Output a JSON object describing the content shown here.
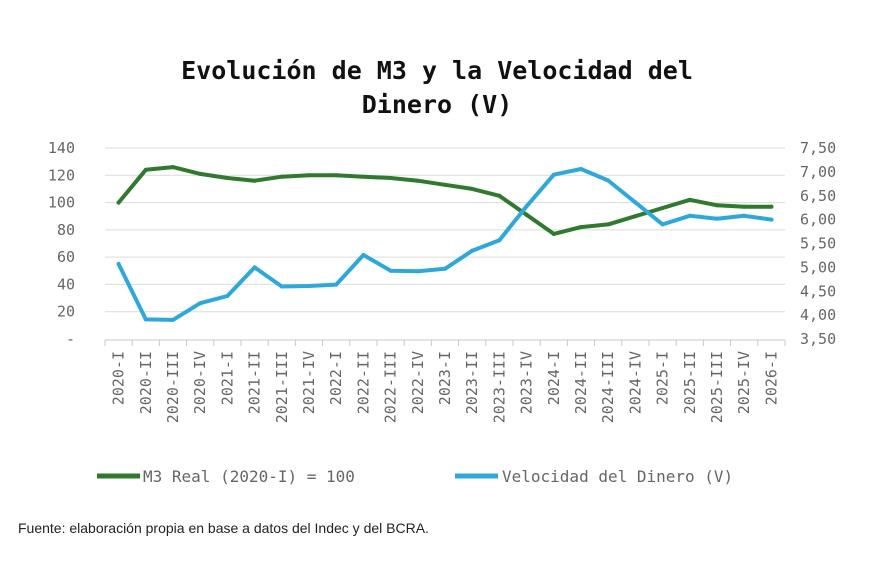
{
  "chart_data": {
    "type": "line",
    "title": [
      "Evolución de M3 y la Velocidad del",
      "Dinero (V)"
    ],
    "categories": [
      "2020-I",
      "2020-II",
      "2020-III",
      "2020-IV",
      "2021-I",
      "2021-II",
      "2021-III",
      "2021-IV",
      "2022-I",
      "2022-II",
      "2022-III",
      "2022-IV",
      "2023-I",
      "2023-II",
      "2023-III",
      "2023-IV",
      "2024-I",
      "2024-II",
      "2024-III",
      "2024-IV",
      "2025-I",
      "2025-II",
      "2025-III",
      "2025-IV",
      "2026-I"
    ],
    "y_left": {
      "min": 0,
      "max": 140,
      "ticks": [
        "-",
        "20",
        "40",
        "60",
        "80",
        "100",
        "120",
        "140"
      ]
    },
    "y_right": {
      "min": 3.5,
      "max": 7.5,
      "ticks": [
        "3,50",
        "4,00",
        "4,50",
        "5,00",
        "5,50",
        "6,00",
        "6,50",
        "7,00",
        "7,50"
      ]
    },
    "grid": true,
    "legend_position": "bottom",
    "series": [
      {
        "name": "M3 Real (2020-I) = 100",
        "axis": "left",
        "color": "#2f7a2f",
        "values": [
          100,
          124,
          126,
          121,
          118,
          116,
          119,
          120,
          120,
          119,
          118,
          116,
          113,
          110,
          105,
          91,
          77,
          82,
          84,
          90,
          96,
          102,
          98,
          97,
          97
        ]
      },
      {
        "name": "Velocidad del Dinero (V)",
        "axis": "right",
        "color": "#2ea8d8",
        "values": [
          5.07,
          3.91,
          3.9,
          4.25,
          4.4,
          5.0,
          4.6,
          4.61,
          4.64,
          5.26,
          4.93,
          4.92,
          4.97,
          5.35,
          5.57,
          6.28,
          6.94,
          7.06,
          6.82,
          6.36,
          5.9,
          6.08,
          6.02,
          6.08,
          6.0
        ]
      }
    ]
  },
  "source": "Fuente: elaboración propia en base a datos del Indec y del BCRA."
}
